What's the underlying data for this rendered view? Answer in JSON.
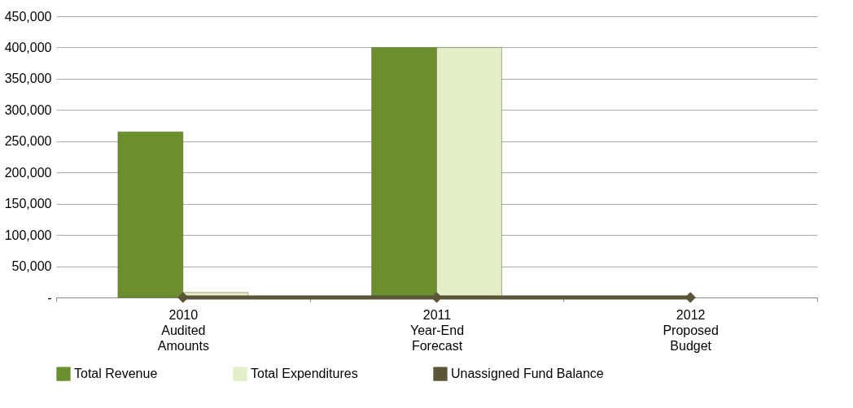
{
  "chart_data": {
    "type": "bar",
    "categories": [
      "2010\nAudited\nAmounts",
      "2011\nYear-End\nForecast",
      "2012\nProposed\nBudget"
    ],
    "series": [
      {
        "name": "Total Revenue",
        "color": "#6b8e2f",
        "values": [
          265000,
          400000,
          null
        ]
      },
      {
        "name": "Total Expenditures",
        "color": "#e2efc8",
        "values": [
          8000,
          400000,
          null
        ]
      },
      {
        "name": "Unassigned Fund Balance",
        "color": "#5a5538",
        "type": "line",
        "marker": "diamond",
        "values": [
          0,
          0,
          0
        ]
      }
    ],
    "ylim": [
      0,
      450000
    ],
    "yticks": [
      {
        "value": 0,
        "label": "-"
      },
      {
        "value": 50000,
        "label": "50,000"
      },
      {
        "value": 100000,
        "label": "100,000"
      },
      {
        "value": 150000,
        "label": "150,000"
      },
      {
        "value": 200000,
        "label": "200,000"
      },
      {
        "value": 250000,
        "label": "250,000"
      },
      {
        "value": 300000,
        "label": "300,000"
      },
      {
        "value": 350000,
        "label": "350,000"
      },
      {
        "value": 400000,
        "label": "400,000"
      },
      {
        "value": 450000,
        "label": "450,000"
      }
    ],
    "grid": "y",
    "legend": "bottom"
  }
}
